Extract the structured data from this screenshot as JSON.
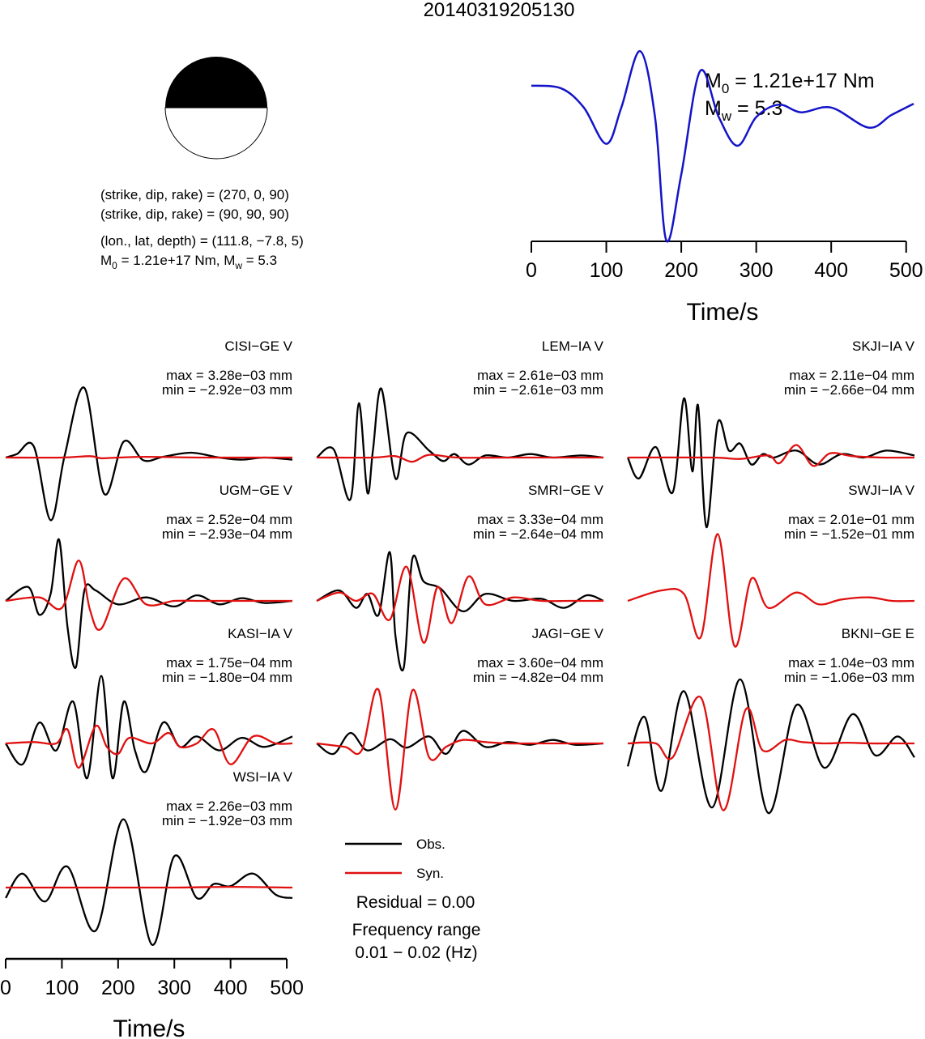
{
  "title": "20140319205130",
  "mechanism": {
    "plane1": "(strike, dip, rake) = (270, 0, 90)",
    "plane2": "(strike, dip, rake) = (90, 90, 90)",
    "location": "(lon., lat, depth) = (111.8, −7.8, 5)",
    "moment_prefix": "M",
    "moment_sub": "0",
    "moment_value": " = 1.21e+17 Nm, M",
    "mw_sub": "w",
    "mw_value": " = 5.3"
  },
  "colors": {
    "observed": "#000000",
    "synthetic": "#e01010",
    "stf": "#1414c8",
    "beachball_compression": "#000000",
    "beachball_dilatation": "#ffffff"
  },
  "legend": {
    "obs_label": "Obs.",
    "syn_label": "Syn.",
    "residual": "Residual = 0.00",
    "freq_label": "Frequency range",
    "freq_value": "0.01 − 0.02 (Hz)"
  },
  "chart_data": [
    {
      "type": "line",
      "name": "source-time-function",
      "xlabel": "Time/s",
      "xlim": [
        0,
        510
      ],
      "xticks": [
        0,
        100,
        200,
        300,
        400,
        500
      ],
      "annotation_m0": {
        "prefix": "M",
        "sub": "0",
        "value": " = 1.21e+17 Nm"
      },
      "annotation_mw": {
        "prefix": "M",
        "sub": "w",
        "value": " = 5.3"
      },
      "series": [
        {
          "x": [
            0,
            40,
            70,
            100,
            120,
            145,
            165,
            180,
            200,
            225,
            250,
            275,
            300,
            330,
            360,
            400,
            450,
            480,
            510
          ],
          "values": [
            0.63,
            0.6,
            0.4,
            0.02,
            0.4,
            0.99,
            0.3,
            -0.99,
            -0.3,
            0.78,
            0.3,
            0.0,
            0.3,
            0.43,
            0.35,
            0.4,
            0.19,
            0.32,
            0.44
          ]
        }
      ]
    },
    {
      "type": "line",
      "name": "waveform-panels",
      "xlabel": "Time/s",
      "xlim": [
        0,
        510
      ],
      "xticks": [
        0,
        100,
        200,
        300,
        400,
        500
      ],
      "panels": [
        {
          "station": "CISI−GE V",
          "max_label": "max = 3.28e−03 mm",
          "min_label": "min = −2.92e−03 mm",
          "obs": {
            "x": [
              0,
              20,
              50,
              80,
              105,
              140,
              175,
              210,
              245,
              280,
              330,
              380,
              420,
              460,
              510
            ],
            "values": [
              0.0,
              0.05,
              0.16,
              -0.9,
              0.03,
              1.0,
              -0.52,
              0.23,
              -0.04,
              0.01,
              0.07,
              0.0,
              -0.03,
              0.0,
              -0.03
            ]
          },
          "syn": {
            "x": [
              0,
              100,
              150,
              170,
              200,
              250,
              350,
              450,
              510
            ],
            "values": [
              0.0,
              0.0,
              0.02,
              -0.01,
              0.0,
              0.01,
              0.0,
              0.0,
              0.0
            ]
          }
        },
        {
          "station": "LEM−IA V",
          "max_label": "max = 2.61e−03 mm",
          "min_label": "min = −2.61e−03 mm",
          "obs": {
            "x": [
              0,
              30,
              60,
              75,
              90,
              100,
              115,
              140,
              160,
              200,
              225,
              245,
              270,
              300,
              340,
              380,
              420,
              470,
              510
            ],
            "values": [
              0.0,
              0.12,
              -0.6,
              0.78,
              -0.5,
              0.1,
              0.99,
              -0.3,
              0.35,
              0.1,
              -0.05,
              0.05,
              -0.1,
              0.03,
              0.0,
              0.05,
              0.0,
              0.03,
              0.0
            ]
          },
          "syn": {
            "x": [
              0,
              100,
              140,
              170,
              200,
              250,
              350,
              450,
              510
            ],
            "values": [
              0.0,
              0.0,
              0.02,
              -0.06,
              0.04,
              0.0,
              0.0,
              0.0,
              0.0
            ]
          }
        },
        {
          "station": "SKJI−IA V",
          "max_label": "max = 2.11e−04 mm",
          "min_label": "min = −2.66e−04 mm",
          "obs": {
            "x": [
              0,
              20,
              50,
              80,
              100,
              115,
              125,
              140,
              160,
              180,
              200,
              220,
              240,
              260,
              300,
              340,
              380,
              420,
              460,
              510
            ],
            "values": [
              0.0,
              -0.3,
              0.15,
              -0.5,
              0.85,
              -0.2,
              0.75,
              -1.0,
              0.5,
              0.1,
              0.2,
              -0.1,
              0.05,
              0.0,
              0.1,
              -0.1,
              0.05,
              0.0,
              0.1,
              0.03
            ]
          },
          "syn": {
            "x": [
              0,
              150,
              200,
              250,
              270,
              300,
              330,
              360,
              400,
              450,
              510
            ],
            "values": [
              0.0,
              0.0,
              -0.02,
              0.03,
              -0.08,
              0.18,
              -0.12,
              0.06,
              0.02,
              0.0,
              0.0
            ]
          }
        },
        {
          "station": "UGM−GE V",
          "max_label": "max = 2.52e−04 mm",
          "min_label": "min = −2.93e−04 mm",
          "obs": {
            "x": [
              0,
              40,
              60,
              80,
              95,
              110,
              125,
              140,
              160,
              200,
              250,
              300,
              340,
              380,
              420,
              460,
              510
            ],
            "values": [
              0.0,
              0.2,
              -0.2,
              0.1,
              0.88,
              -0.38,
              -0.95,
              0.15,
              0.15,
              -0.05,
              0.05,
              -0.08,
              0.08,
              -0.05,
              0.04,
              -0.03,
              0.0
            ]
          },
          "syn": {
            "x": [
              0,
              60,
              100,
              130,
              150,
              170,
              210,
              250,
              300,
              350,
              400,
              460,
              510
            ],
            "values": [
              0.0,
              0.05,
              -0.1,
              0.58,
              -0.13,
              -0.4,
              0.32,
              -0.05,
              0.0,
              0.0,
              0.0,
              0.0,
              0.0
            ]
          }
        },
        {
          "station": "SMRI−GE V",
          "max_label": "max = 3.33e−04 mm",
          "min_label": "min = −2.64e−04 mm",
          "obs": {
            "x": [
              0,
              40,
              70,
              90,
              110,
              130,
              140,
              155,
              170,
              190,
              220,
              260,
              300,
              350,
              400,
              440,
              480,
              510
            ],
            "values": [
              0.0,
              0.15,
              -0.1,
              0.1,
              -0.2,
              0.7,
              -0.5,
              -0.95,
              0.6,
              0.28,
              0.18,
              -0.15,
              0.1,
              0.0,
              0.03,
              -0.1,
              0.08,
              0.0
            ]
          },
          "syn": {
            "x": [
              0,
              40,
              70,
              100,
              130,
              160,
              190,
              215,
              240,
              270,
              300,
              350,
              400,
              450,
              510
            ],
            "values": [
              0.0,
              0.12,
              0.0,
              0.1,
              -0.27,
              0.49,
              -0.6,
              0.2,
              -0.32,
              0.35,
              -0.05,
              0.05,
              0.0,
              0.0,
              0.0
            ]
          }
        },
        {
          "station": "SWJI−IA V",
          "max_label": "max = 2.01e−01 mm",
          "min_label": "min = −1.52e−01 mm",
          "obs": {
            "x": [],
            "values": []
          },
          "syn": {
            "x": [
              0,
              60,
              100,
              130,
              160,
              190,
              220,
              250,
              300,
              340,
              380,
              430,
              470,
              510
            ],
            "values": [
              0.0,
              0.15,
              0.1,
              -0.52,
              0.96,
              -0.65,
              0.32,
              -0.1,
              0.12,
              -0.05,
              0.02,
              0.05,
              0.0,
              0.0
            ]
          }
        },
        {
          "station": "KASI−IA V",
          "max_label": "max = 1.75e−04 mm",
          "min_label": "min = −1.80e−04 mm",
          "obs": {
            "x": [
              0,
              30,
              60,
              90,
              120,
              145,
              170,
              190,
              210,
              230,
              250,
              280,
              310,
              340,
              380,
              420,
              460,
              510
            ],
            "values": [
              0.0,
              -0.3,
              0.3,
              -0.1,
              0.6,
              -0.5,
              0.97,
              -0.5,
              0.6,
              -0.1,
              -0.4,
              0.3,
              -0.05,
              0.1,
              -0.1,
              0.08,
              -0.05,
              0.1
            ]
          },
          "syn": {
            "x": [
              0,
              50,
              90,
              110,
              130,
              160,
              180,
              200,
              220,
              260,
              290,
              310,
              340,
              370,
              400,
              440,
              480,
              510
            ],
            "values": [
              0.0,
              0.02,
              0.0,
              0.2,
              -0.35,
              0.25,
              -0.05,
              -0.15,
              0.08,
              0.0,
              0.15,
              -0.05,
              0.0,
              0.2,
              -0.3,
              0.1,
              0.0,
              0.0
            ]
          }
        },
        {
          "station": "JAGI−GE V",
          "max_label": "max = 3.60e−04 mm",
          "min_label": "min = −4.82e−04 mm",
          "obs": {
            "x": [
              0,
              30,
              60,
              90,
              130,
              160,
              200,
              230,
              260,
              300,
              340,
              380,
              420,
              460,
              510
            ],
            "values": [
              0.0,
              -0.15,
              0.15,
              -0.1,
              0.06,
              -0.06,
              0.1,
              -0.15,
              0.18,
              -0.05,
              0.02,
              -0.02,
              0.05,
              -0.02,
              0.0
            ]
          },
          "syn": {
            "x": [
              0,
              50,
              80,
              110,
              140,
              170,
              200,
              230,
              260,
              300,
              340,
              380,
              420,
              460,
              510
            ],
            "values": [
              0.0,
              -0.05,
              -0.1,
              0.77,
              -0.95,
              0.76,
              -0.2,
              -0.05,
              0.05,
              0.02,
              0.0,
              0.0,
              0.0,
              0.0,
              0.0
            ]
          }
        },
        {
          "station": "BKNI−GE E",
          "max_label": "max = 1.04e−03 mm",
          "min_label": "min = −1.06e−03 mm",
          "obs": {
            "x": [
              0,
              30,
              60,
              100,
              150,
              200,
              250,
              300,
              350,
              400,
              440,
              480,
              510
            ],
            "values": [
              -0.33,
              0.38,
              -0.68,
              0.75,
              -0.92,
              0.92,
              -1.0,
              0.55,
              -0.35,
              0.42,
              -0.17,
              0.1,
              -0.2
            ]
          },
          "syn": {
            "x": [
              0,
              50,
              80,
              130,
              170,
              210,
              240,
              280,
              310,
              350,
              390,
              430,
              470,
              510
            ],
            "values": [
              0.0,
              0.0,
              -0.2,
              0.66,
              -0.96,
              0.49,
              -0.1,
              0.05,
              0.02,
              0.0,
              0.01,
              0.0,
              0.0,
              0.0
            ]
          }
        },
        {
          "station": "WSI−IA V",
          "max_label": "max = 2.26e−03 mm",
          "min_label": "min = −1.92e−03 mm",
          "obs": {
            "x": [
              0,
              30,
              70,
              110,
              160,
              210,
              260,
              300,
              340,
              370,
              400,
              440,
              480,
              510
            ],
            "values": [
              -0.15,
              0.2,
              -0.2,
              0.3,
              -0.62,
              0.98,
              -0.82,
              0.45,
              -0.15,
              0.05,
              0.02,
              0.2,
              -0.1,
              -0.15
            ]
          },
          "syn": {
            "x": [
              0,
              100,
              200,
              300,
              400,
              510
            ],
            "values": [
              0.0,
              0.0,
              0.0,
              0.0,
              0.01,
              0.0
            ]
          }
        }
      ]
    }
  ]
}
